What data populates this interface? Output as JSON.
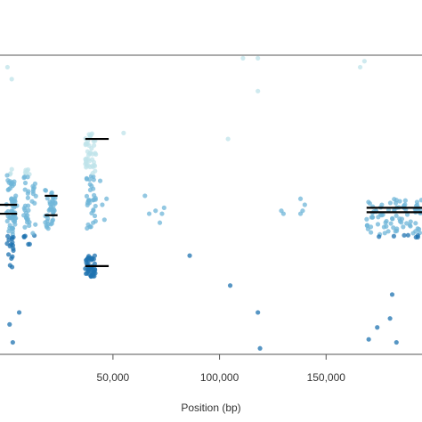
{
  "chart_data": {
    "type": "scatter",
    "title": "",
    "xlabel": "Position (bp)",
    "ylabel": "",
    "xlim": [
      -3000,
      195000
    ],
    "ylim": [
      0,
      1
    ],
    "grid": false,
    "x_ticks": [
      {
        "value": 50000,
        "label": "50,000"
      },
      {
        "value": 100000,
        "label": "100,000"
      },
      {
        "value": 150000,
        "label": "150,000"
      }
    ],
    "colors": {
      "light": "#bfe3ea",
      "mid": "#6fb6d8",
      "dark": "#1f73b0",
      "median_line": "#000000",
      "frame": "#555555"
    },
    "clusters": [
      {
        "x": [
          0,
          4000
        ],
        "y": [
          0.29,
          0.62
        ],
        "n": 55
      },
      {
        "x": [
          2000,
          5000
        ],
        "y": [
          0.42,
          0.53
        ],
        "n": 25
      },
      {
        "x": [
          8000,
          11000
        ],
        "y": [
          0.36,
          0.62
        ],
        "n": 35
      },
      {
        "x": [
          12000,
          14000
        ],
        "y": [
          0.38,
          0.58
        ],
        "n": 12
      },
      {
        "x": [
          18000,
          23000
        ],
        "y": [
          0.42,
          0.55
        ],
        "n": 40
      },
      {
        "x": [
          37000,
          42000
        ],
        "y": [
          0.62,
          0.74
        ],
        "n": 40
      },
      {
        "x": [
          37000,
          42000
        ],
        "y": [
          0.42,
          0.62
        ],
        "n": 35
      },
      {
        "x": [
          37000,
          42000
        ],
        "y": [
          0.26,
          0.33
        ],
        "n": 45
      },
      {
        "x": [
          169000,
          195000
        ],
        "y": [
          0.39,
          0.52
        ],
        "n": 90
      }
    ],
    "points": [
      {
        "x": 500,
        "y": 0.96
      },
      {
        "x": 2500,
        "y": 0.92
      },
      {
        "x": 1500,
        "y": 0.1
      },
      {
        "x": 3000,
        "y": 0.04
      },
      {
        "x": 6000,
        "y": 0.14
      },
      {
        "x": 45000,
        "y": 0.5
      },
      {
        "x": 46000,
        "y": 0.45
      },
      {
        "x": 47000,
        "y": 0.52
      },
      {
        "x": 44000,
        "y": 0.58
      },
      {
        "x": 55000,
        "y": 0.74
      },
      {
        "x": 65000,
        "y": 0.53
      },
      {
        "x": 67000,
        "y": 0.47
      },
      {
        "x": 70000,
        "y": 0.48
      },
      {
        "x": 72000,
        "y": 0.44
      },
      {
        "x": 73000,
        "y": 0.47
      },
      {
        "x": 74000,
        "y": 0.49
      },
      {
        "x": 86000,
        "y": 0.33
      },
      {
        "x": 104000,
        "y": 0.72
      },
      {
        "x": 105000,
        "y": 0.23
      },
      {
        "x": 111000,
        "y": 0.99
      },
      {
        "x": 118000,
        "y": 0.99
      },
      {
        "x": 118000,
        "y": 0.88
      },
      {
        "x": 118000,
        "y": 0.14
      },
      {
        "x": 119000,
        "y": 0.02
      },
      {
        "x": 129000,
        "y": 0.48
      },
      {
        "x": 130000,
        "y": 0.47
      },
      {
        "x": 138000,
        "y": 0.47
      },
      {
        "x": 139000,
        "y": 0.48
      },
      {
        "x": 140000,
        "y": 0.5
      },
      {
        "x": 138000,
        "y": 0.52
      },
      {
        "x": 166000,
        "y": 0.96
      },
      {
        "x": 168000,
        "y": 0.98
      },
      {
        "x": 170000,
        "y": 0.05
      },
      {
        "x": 174000,
        "y": 0.09
      },
      {
        "x": 181000,
        "y": 0.2
      },
      {
        "x": 183000,
        "y": 0.04
      },
      {
        "x": 180000,
        "y": 0.12
      }
    ],
    "medians": [
      {
        "x_start": -3000,
        "x_end": 5000,
        "y": 0.5
      },
      {
        "x_start": -3000,
        "y": 0.47,
        "x_end": 5000
      },
      {
        "x_start": 18000,
        "x_end": 24000,
        "y": 0.53
      },
      {
        "x_start": 18000,
        "x_end": 24000,
        "y": 0.465
      },
      {
        "x_start": 37000,
        "x_end": 48000,
        "y": 0.72
      },
      {
        "x_start": 37000,
        "x_end": 48000,
        "y": 0.295
      },
      {
        "x_start": 169000,
        "x_end": 195000,
        "y": 0.49
      },
      {
        "x_start": 169000,
        "x_end": 195000,
        "y": 0.475
      }
    ]
  }
}
